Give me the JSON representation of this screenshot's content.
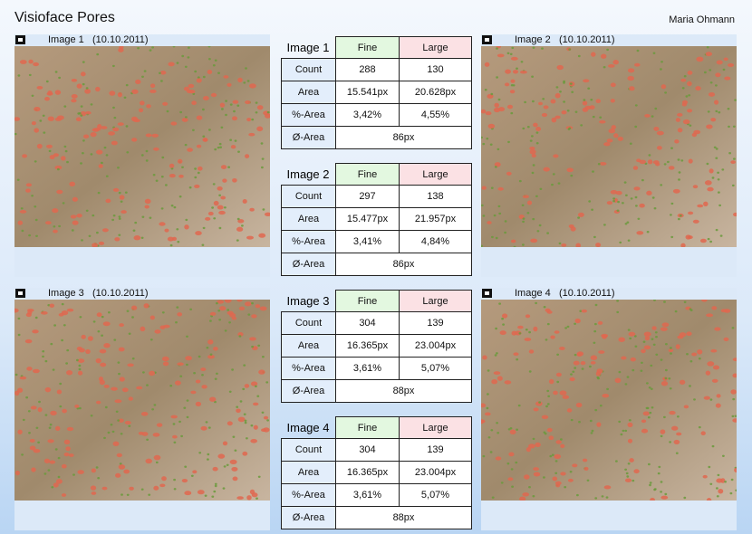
{
  "header": {
    "title": "Visioface Pores",
    "user": "Maria Ohmann"
  },
  "panels": [
    {
      "name": "Image 1",
      "date": "(10.10.2011)"
    },
    {
      "name": "Image 2",
      "date": "(10.10.2011)"
    },
    {
      "name": "Image 3",
      "date": "(10.10.2011)"
    },
    {
      "name": "Image 4",
      "date": "(10.10.2011)"
    }
  ],
  "tables": [
    {
      "title": "Image 1",
      "headers": [
        "Fine",
        "Large"
      ],
      "rows": [
        [
          "Count",
          "288",
          "130"
        ],
        [
          "Area",
          "15.541px",
          "20.628px"
        ],
        [
          "%-Area",
          "3,42%",
          "4,55%"
        ]
      ],
      "average": [
        "Ø-Area",
        "86px"
      ]
    },
    {
      "title": "Image 2",
      "headers": [
        "Fine",
        "Large"
      ],
      "rows": [
        [
          "Count",
          "297",
          "138"
        ],
        [
          "Area",
          "15.477px",
          "21.957px"
        ],
        [
          "%-Area",
          "3,41%",
          "4,84%"
        ]
      ],
      "average": [
        "Ø-Area",
        "86px"
      ]
    },
    {
      "title": "Image 3",
      "headers": [
        "Fine",
        "Large"
      ],
      "rows": [
        [
          "Count",
          "304",
          "139"
        ],
        [
          "Area",
          "16.365px",
          "23.004px"
        ],
        [
          "%-Area",
          "3,61%",
          "5,07%"
        ]
      ],
      "average": [
        "Ø-Area",
        "88px"
      ]
    },
    {
      "title": "Image 4",
      "headers": [
        "Fine",
        "Large"
      ],
      "rows": [
        [
          "Count",
          "304",
          "139"
        ],
        [
          "Area",
          "16.365px",
          "23.004px"
        ],
        [
          "%-Area",
          "3,61%",
          "5,07%"
        ]
      ],
      "average": [
        "Ø-Area",
        "88px"
      ]
    }
  ]
}
